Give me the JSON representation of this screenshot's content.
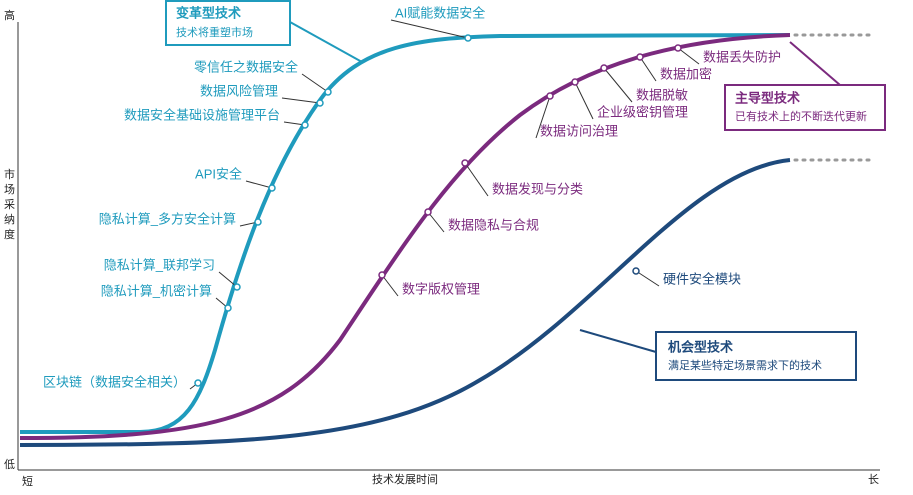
{
  "axis": {
    "y_high": "高",
    "y_low": "低",
    "y_label": "市场采纳度",
    "x_short": "短",
    "x_label": "技术发展时间",
    "x_long": "长"
  },
  "groups": [
    {
      "title": "变革型技术",
      "subtitle": "技术将重塑市场",
      "items": [
        "AI赋能数据安全",
        "零信任之数据安全",
        "数据风险管理",
        "数据安全基础设施管理平台",
        "API安全",
        "隐私计算_多方安全计算",
        "隐私计算_联邦学习",
        "隐私计算_机密计算",
        "区块链（数据安全相关）"
      ]
    },
    {
      "title": "主导型技术",
      "subtitle": "已有技术上的不断迭代更新",
      "items": [
        "数据丢失防护",
        "数据加密",
        "数据脱敏",
        "企业级密钥管理",
        "数据访问治理",
        "数据发现与分类",
        "数据隐私与合规",
        "数字版权管理"
      ]
    },
    {
      "title": "机会型技术",
      "subtitle": "满足某些特定场景需求下的技术",
      "items": [
        "硬件安全模块"
      ]
    }
  ]
}
